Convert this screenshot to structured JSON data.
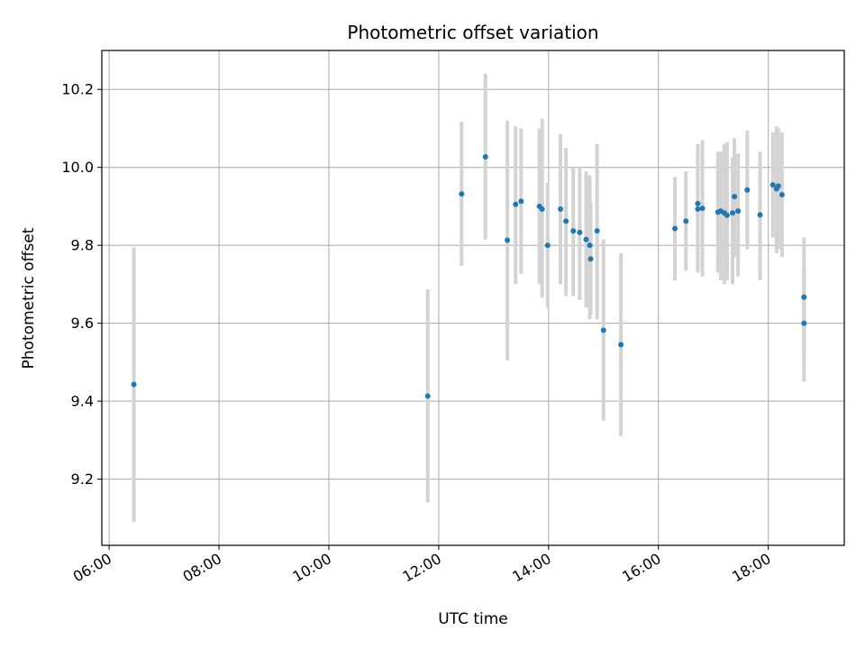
{
  "chart_data": {
    "type": "scatter",
    "title": "Photometric offset variation",
    "xlabel": "UTC time",
    "ylabel": "Photometric offset",
    "x_ticks": [
      "06:00",
      "08:00",
      "10:00",
      "12:00",
      "14:00",
      "16:00",
      "18:00"
    ],
    "y_ticks": [
      "9.2",
      "9.4",
      "9.6",
      "9.8",
      "10.0",
      "10.2"
    ],
    "xlim": [
      "05:52",
      "19:23"
    ],
    "ylim": [
      9.03,
      10.3
    ],
    "grid": true,
    "marker_color": "#1f77b4",
    "errorbar_color": "#d3d3d3",
    "points": [
      {
        "t": "06:27",
        "y": 9.443,
        "lo": 9.09,
        "hi": 9.795
      },
      {
        "t": "11:48",
        "y": 9.413,
        "lo": 9.14,
        "hi": 9.687
      },
      {
        "t": "12:25",
        "y": 9.932,
        "lo": 9.747,
        "hi": 10.117
      },
      {
        "t": "12:51",
        "y": 10.027,
        "lo": 9.815,
        "hi": 10.24
      },
      {
        "t": "13:15",
        "y": 9.813,
        "lo": 9.505,
        "hi": 10.12
      },
      {
        "t": "13:24",
        "y": 9.905,
        "lo": 9.7,
        "hi": 10.105
      },
      {
        "t": "13:30",
        "y": 9.913,
        "lo": 9.727,
        "hi": 10.1
      },
      {
        "t": "13:50",
        "y": 9.9,
        "lo": 9.7,
        "hi": 10.1
      },
      {
        "t": "13:53",
        "y": 9.893,
        "lo": 9.665,
        "hi": 10.125
      },
      {
        "t": "13:59",
        "y": 9.8,
        "lo": 9.64,
        "hi": 9.96
      },
      {
        "t": "14:13",
        "y": 9.893,
        "lo": 9.7,
        "hi": 10.085
      },
      {
        "t": "14:19",
        "y": 9.862,
        "lo": 9.67,
        "hi": 10.05
      },
      {
        "t": "14:27",
        "y": 9.837,
        "lo": 9.67,
        "hi": 10.0
      },
      {
        "t": "14:34",
        "y": 9.833,
        "lo": 9.66,
        "hi": 10.0
      },
      {
        "t": "14:41",
        "y": 9.815,
        "lo": 9.64,
        "hi": 9.99
      },
      {
        "t": "14:45",
        "y": 9.8,
        "lo": 9.61,
        "hi": 9.98
      },
      {
        "t": "14:46",
        "y": 9.765,
        "lo": 9.62,
        "hi": 9.91
      },
      {
        "t": "14:53",
        "y": 9.837,
        "lo": 9.61,
        "hi": 10.06
      },
      {
        "t": "15:00",
        "y": 9.582,
        "lo": 9.35,
        "hi": 9.815
      },
      {
        "t": "15:19",
        "y": 9.545,
        "lo": 9.31,
        "hi": 9.78
      },
      {
        "t": "16:18",
        "y": 9.843,
        "lo": 9.71,
        "hi": 9.975
      },
      {
        "t": "16:30",
        "y": 9.862,
        "lo": 9.735,
        "hi": 9.99
      },
      {
        "t": "16:43",
        "y": 9.907,
        "lo": 9.74,
        "hi": 10.05
      },
      {
        "t": "16:43",
        "y": 9.893,
        "lo": 9.73,
        "hi": 10.06
      },
      {
        "t": "16:48",
        "y": 9.895,
        "lo": 9.72,
        "hi": 10.07
      },
      {
        "t": "17:05",
        "y": 9.885,
        "lo": 9.73,
        "hi": 10.04
      },
      {
        "t": "17:08",
        "y": 9.888,
        "lo": 9.71,
        "hi": 10.04
      },
      {
        "t": "17:12",
        "y": 9.883,
        "lo": 9.7,
        "hi": 10.06
      },
      {
        "t": "17:15",
        "y": 9.877,
        "lo": 9.71,
        "hi": 10.065
      },
      {
        "t": "17:21",
        "y": 9.883,
        "lo": 9.7,
        "hi": 10.025
      },
      {
        "t": "17:23",
        "y": 9.925,
        "lo": 9.77,
        "hi": 10.075
      },
      {
        "t": "17:27",
        "y": 9.888,
        "lo": 9.72,
        "hi": 10.035
      },
      {
        "t": "17:37",
        "y": 9.942,
        "lo": 9.79,
        "hi": 10.095
      },
      {
        "t": "17:51",
        "y": 9.878,
        "lo": 9.71,
        "hi": 10.04
      },
      {
        "t": "18:05",
        "y": 9.955,
        "lo": 9.82,
        "hi": 10.09
      },
      {
        "t": "18:09",
        "y": 9.945,
        "lo": 9.78,
        "hi": 10.105
      },
      {
        "t": "18:11",
        "y": 9.952,
        "lo": 9.79,
        "hi": 10.1
      },
      {
        "t": "18:15",
        "y": 9.93,
        "lo": 9.77,
        "hi": 10.09
      },
      {
        "t": "18:39",
        "y": 9.667,
        "lo": 9.515,
        "hi": 9.82
      },
      {
        "t": "18:39",
        "y": 9.6,
        "lo": 9.45,
        "hi": 9.75
      }
    ]
  }
}
